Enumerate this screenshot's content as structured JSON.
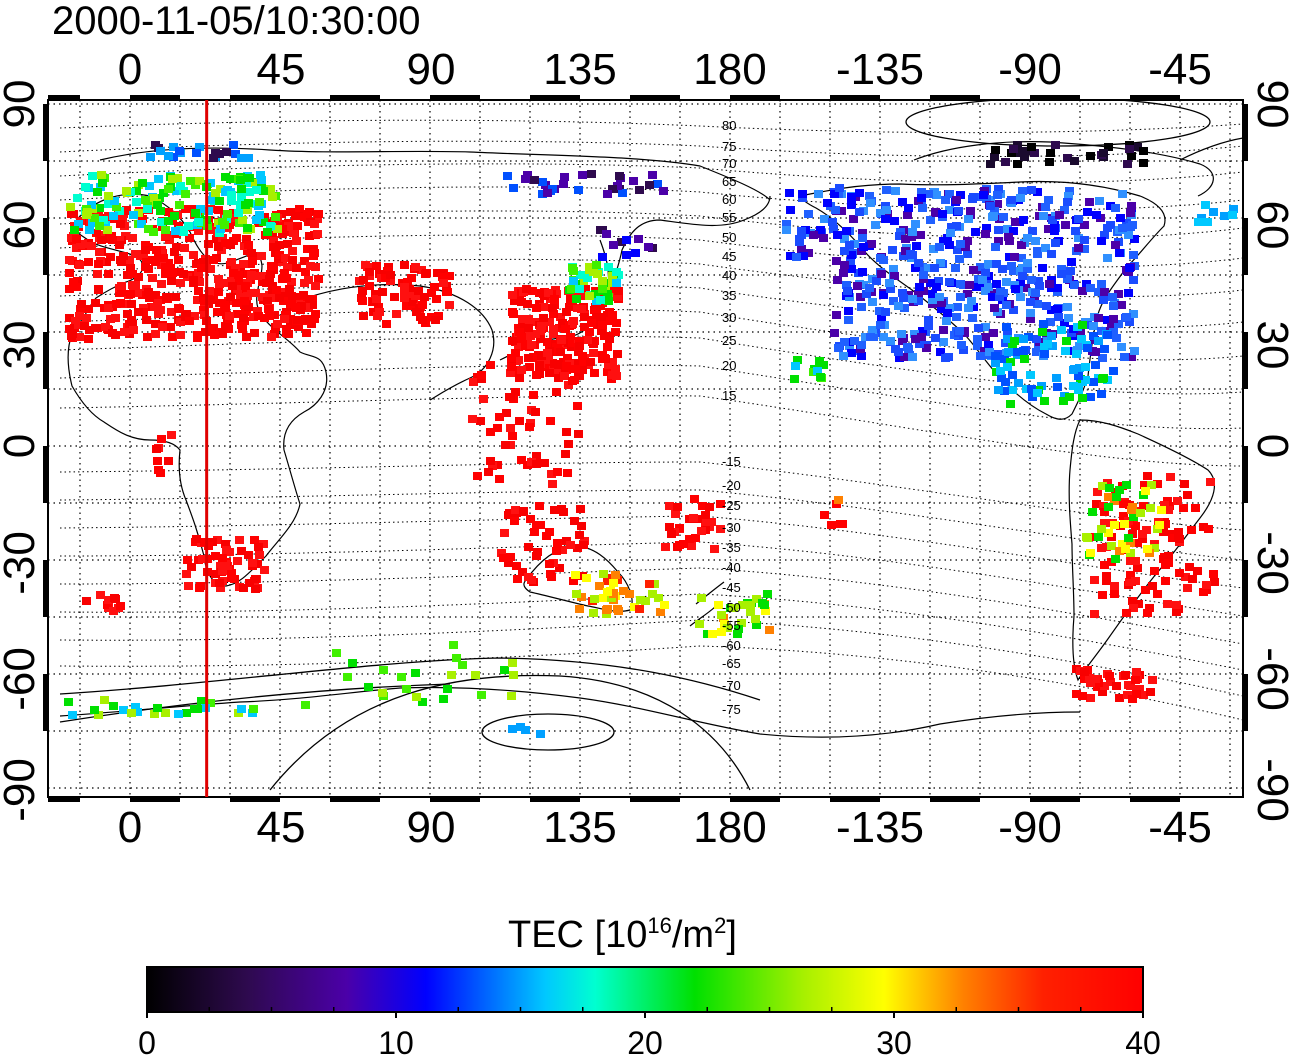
{
  "timestamp": "2000-11-05/10:30:00",
  "map": {
    "lon_ticks": [
      "0",
      "45",
      "90",
      "135",
      "180",
      "-135",
      "-90",
      "-45"
    ],
    "lat_ticks": [
      "90",
      "60",
      "30",
      "0",
      "-30",
      "-60",
      "-90"
    ],
    "magnetic_latitude_labels": [
      "80",
      "75",
      "70",
      "65",
      "60",
      "55",
      "50",
      "45",
      "40",
      "35",
      "30",
      "25",
      "20",
      "15",
      "-15",
      "-20",
      "-25",
      "-30",
      "-35",
      "-40",
      "-45",
      "-50",
      "-55",
      "-60",
      "-65",
      "-70",
      "-75"
    ],
    "marker_longitude_deg": 23
  },
  "colorbar": {
    "label": "TEC  [10",
    "label_sup": "16",
    "label_unit": "/m",
    "label_sup2": "2",
    "label_end": "]",
    "ticks": [
      "0",
      "10",
      "20",
      "30",
      "40"
    ],
    "range": [
      0,
      40
    ],
    "colors": [
      "#000000",
      "#2e0a4e",
      "#4b00a8",
      "#0000ff",
      "#00c8ff",
      "#00ffd0",
      "#00e000",
      "#a8f000",
      "#ffff00",
      "#ff8000",
      "#ff2000",
      "#ff0000"
    ]
  }
}
